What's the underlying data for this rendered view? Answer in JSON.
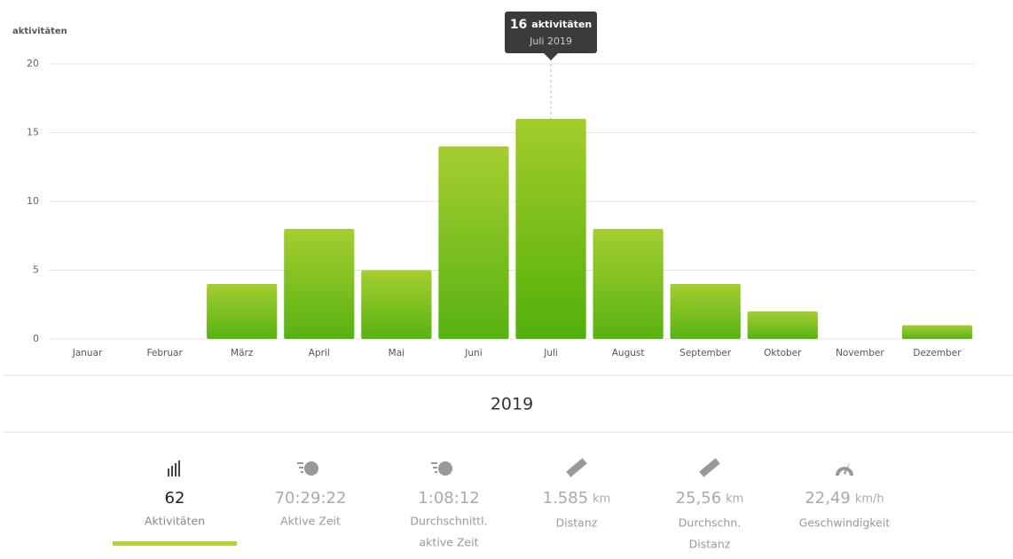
{
  "chart_data": {
    "type": "bar",
    "y_label": "aktivitäten",
    "categories": [
      "Januar",
      "Februar",
      "März",
      "April",
      "Mai",
      "Juni",
      "Juli",
      "August",
      "September",
      "Oktober",
      "November",
      "Dezember"
    ],
    "values": [
      0,
      0,
      4,
      8,
      5,
      14,
      16,
      8,
      4,
      2,
      0,
      1
    ],
    "ylim": [
      0,
      20
    ],
    "yticks": [
      0,
      5,
      10,
      15,
      20
    ],
    "grid": true,
    "color_top": "#a3cc2b",
    "color_bottom": "#52b00a"
  },
  "tooltip": {
    "unit": "aktivitäten",
    "label": "Juli 2019"
  },
  "year": "2019",
  "stats": [
    {
      "value": "62",
      "label": [
        "Aktivitäten"
      ]
    },
    {
      "value": "70:29:22",
      "label": [
        "Aktive Zeit"
      ]
    },
    {
      "value": "1:08:12",
      "label": [
        "Durchschnittl.",
        "aktive Zeit"
      ]
    },
    {
      "value": "1.585",
      "unit": "km",
      "label": [
        "Distanz"
      ]
    },
    {
      "value": "25,56",
      "unit": "km",
      "label": [
        "Durchschn.",
        "Distanz"
      ]
    },
    {
      "value": "22,49",
      "unit": "km/h",
      "label": [
        "Geschwindigkeit"
      ]
    }
  ]
}
